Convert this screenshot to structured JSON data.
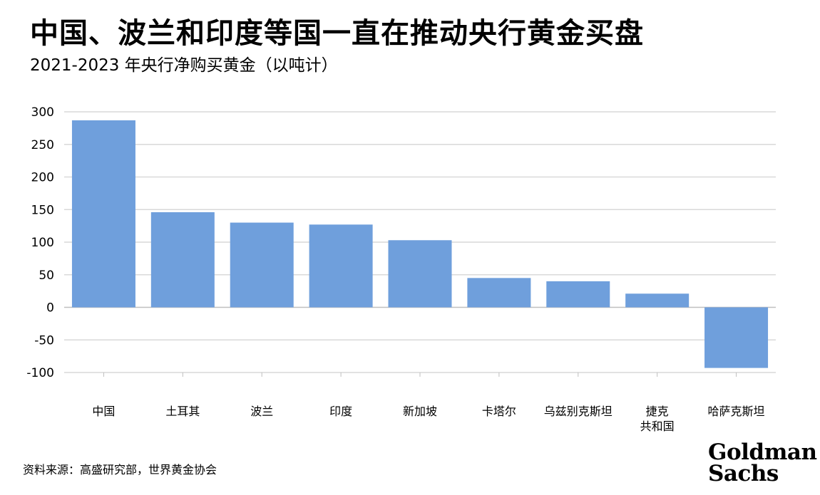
{
  "title": "中国、波兰和印度等国一直在推动央行黄金买盘",
  "subtitle": "2021-2023 年央行净购买黄金（以吨计）",
  "source": "资料来源：高盛研究部，世界黄金协会",
  "logo": {
    "line1": "Goldman",
    "line2": "Sachs"
  },
  "colors": {
    "bar": "#6f9fdc",
    "grid": "#d9d9d9",
    "axis": "#bfbfbf"
  },
  "chart_data": {
    "type": "bar",
    "categories": [
      "中国",
      "土耳其",
      "波兰",
      "印度",
      "新加坡",
      "卡塔尔",
      "乌兹别克斯坦",
      "捷克\n共和国",
      "哈萨克斯坦"
    ],
    "values": [
      287,
      146,
      130,
      127,
      103,
      45,
      40,
      21,
      -93
    ],
    "ylim": [
      -100,
      300
    ],
    "yticks": [
      300,
      250,
      200,
      150,
      100,
      50,
      0,
      -50,
      -100
    ],
    "grid": true
  }
}
